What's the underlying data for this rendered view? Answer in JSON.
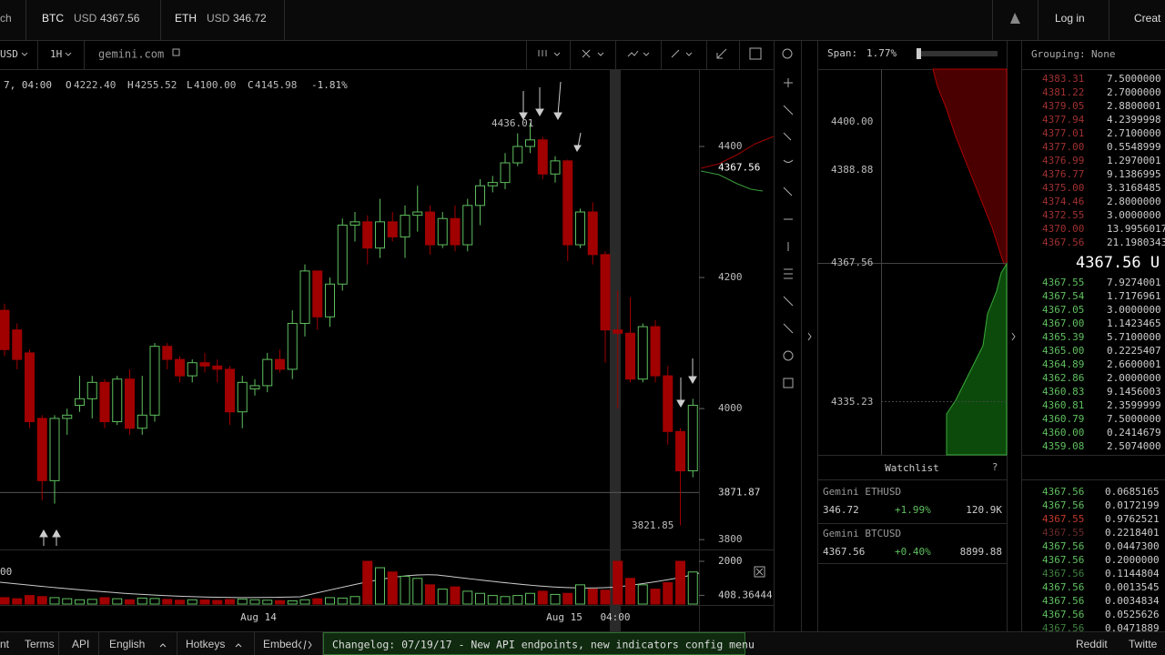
{
  "topbar": {
    "cut_left": "ch",
    "btc": {
      "symbol": "BTC",
      "currency": "USD",
      "price": "4367.56"
    },
    "eth": {
      "symbol": "ETH",
      "currency": "USD",
      "price": "346.72"
    },
    "login": "Log in",
    "create": "Creat"
  },
  "toolbar": {
    "pair": "USD",
    "interval": "1H",
    "source": "gemini.com"
  },
  "ohlc_line": {
    "time": "7, 04:00",
    "o_key": "O",
    "o": "4222.40",
    "h_key": "H",
    "h": "4255.52",
    "l_key": "L",
    "l": "4100.00",
    "c_key": "C",
    "c": "4145.98",
    "change": "-1.81%"
  },
  "chart": {
    "type": "candlestick",
    "ylim": [
      3785,
      4518
    ],
    "yticks": [
      4400,
      4200,
      4000,
      3800
    ],
    "last_price": 4367.56,
    "crosshair": 3871.87,
    "up_color": "#5fbf5f",
    "down_color": "#a00000",
    "candles": [
      [
        4150,
        4160,
        4080,
        4090
      ],
      [
        4120,
        4130,
        4060,
        4075
      ],
      [
        4085,
        4090,
        3970,
        3980
      ],
      [
        3985,
        3990,
        3860,
        3890
      ],
      [
        3890,
        3990,
        3855,
        3985
      ],
      [
        3985,
        4000,
        3960,
        3990
      ],
      [
        4005,
        4050,
        3995,
        4015
      ],
      [
        4015,
        4050,
        3985,
        4040
      ],
      [
        4040,
        4045,
        3970,
        3980
      ],
      [
        3980,
        4050,
        3975,
        4045
      ],
      [
        4045,
        4060,
        3960,
        3970
      ],
      [
        3970,
        4050,
        3960,
        3990
      ],
      [
        3990,
        4100,
        3980,
        4095
      ],
      [
        4095,
        4100,
        4060,
        4075
      ],
      [
        4075,
        4080,
        4040,
        4050
      ],
      [
        4050,
        4075,
        4040,
        4070
      ],
      [
        4070,
        4085,
        4055,
        4065
      ],
      [
        4065,
        4075,
        4040,
        4060
      ],
      [
        4060,
        4065,
        3975,
        3995
      ],
      [
        3995,
        4050,
        3970,
        4040
      ],
      [
        4030,
        4045,
        4020,
        4035
      ],
      [
        4035,
        4085,
        4025,
        4075
      ],
      [
        4075,
        4090,
        4055,
        4060
      ],
      [
        4060,
        4150,
        4045,
        4130
      ],
      [
        4130,
        4220,
        4110,
        4210
      ],
      [
        4210,
        4210,
        4120,
        4140
      ],
      [
        4140,
        4200,
        4125,
        4190
      ],
      [
        4190,
        4290,
        4180,
        4280
      ],
      [
        4280,
        4300,
        4255,
        4285
      ],
      [
        4285,
        4295,
        4220,
        4245
      ],
      [
        4245,
        4320,
        4230,
        4285
      ],
      [
        4285,
        4300,
        4255,
        4262
      ],
      [
        4262,
        4310,
        4230,
        4295
      ],
      [
        4295,
        4340,
        4270,
        4300
      ],
      [
        4300,
        4310,
        4235,
        4250
      ],
      [
        4250,
        4300,
        4245,
        4290
      ],
      [
        4290,
        4310,
        4240,
        4250
      ],
      [
        4250,
        4320,
        4240,
        4310
      ],
      [
        4310,
        4350,
        4280,
        4340
      ],
      [
        4340,
        4355,
        4330,
        4345
      ],
      [
        4345,
        4390,
        4335,
        4375
      ],
      [
        4375,
        4420,
        4370,
        4400
      ],
      [
        4400,
        4436.01,
        4390,
        4410
      ],
      [
        4410,
        4415,
        4350,
        4358
      ],
      [
        4358,
        4385,
        4345,
        4378
      ],
      [
        4378,
        4380,
        4225,
        4250
      ],
      [
        4250,
        4305,
        4245,
        4300
      ],
      [
        4300,
        4315,
        4220,
        4235
      ],
      [
        4235,
        4240,
        4070,
        4120
      ],
      [
        4120,
        4180,
        4000,
        4115
      ],
      [
        4115,
        4170,
        4040,
        4045
      ],
      [
        4045,
        4130,
        4040,
        4125
      ],
      [
        4125,
        4135,
        4040,
        4050
      ],
      [
        4050,
        4065,
        3945,
        3965
      ],
      [
        3965,
        3970,
        3821.85,
        3905
      ],
      [
        3905,
        4015,
        3895,
        4005
      ]
    ],
    "xlabels": [
      "Aug 14",
      "Aug 15",
      "04:00"
    ],
    "volume": {
      "ylim": [
        0,
        2170
      ],
      "yticks": [
        2000,
        408.36444
      ],
      "cut_label": "00",
      "values": [
        300,
        250,
        400,
        350,
        300,
        250,
        200,
        220,
        300,
        250,
        200,
        280,
        260,
        220,
        180,
        200,
        190,
        170,
        210,
        230,
        200,
        180,
        160,
        150,
        200,
        250,
        300,
        280,
        350,
        2000,
        1700,
        1500,
        1300,
        1200,
        900,
        700,
        800,
        600,
        500,
        400,
        350,
        400,
        500,
        600,
        450,
        500,
        900,
        700,
        650,
        2000,
        1200,
        900,
        700,
        1000,
        2000,
        1500
      ]
    }
  },
  "depth": {
    "span_label": "Span:",
    "span": "1.77%",
    "prices": [
      "4400.00",
      "4388.88",
      "4367.56",
      "4335.23"
    ]
  },
  "watchlist": {
    "title": "Watchlist",
    "help": "?",
    "rows": [
      [
        "Gemini ETHUSD",
        "346.72",
        "+1.99%",
        "120.9K"
      ],
      [
        "Gemini BTCUSD",
        "4367.56",
        "+0.40%",
        "8899.88"
      ]
    ]
  },
  "orderbook": {
    "grouping_label": "Grouping:",
    "grouping": "None",
    "asks": [
      [
        "4383.31",
        "7.5000000"
      ],
      [
        "4381.22",
        "2.7000000"
      ],
      [
        "4379.05",
        "2.8800001"
      ],
      [
        "4377.94",
        "4.2399998"
      ],
      [
        "4377.01",
        "2.7100000"
      ],
      [
        "4377.00",
        "0.5548999"
      ],
      [
        "4376.99",
        "1.2970001"
      ],
      [
        "4376.77",
        "9.1386995"
      ],
      [
        "4375.00",
        "3.3168485"
      ],
      [
        "4374.46",
        "2.8000000"
      ],
      [
        "4372.55",
        "3.0000000"
      ],
      [
        "4370.00",
        "13.9956017"
      ],
      [
        "4367.56",
        "21.1980343"
      ]
    ],
    "mid": "4367.56 U",
    "bids": [
      [
        "4367.55",
        "7.9274001"
      ],
      [
        "4367.54",
        "1.7176961"
      ],
      [
        "4367.05",
        "3.0000000"
      ],
      [
        "4367.00",
        "1.1423465"
      ],
      [
        "4365.39",
        "5.7100000"
      ],
      [
        "4365.00",
        "0.2225407"
      ],
      [
        "4364.89",
        "2.6600001"
      ],
      [
        "4362.86",
        "2.0000000"
      ],
      [
        "4360.83",
        "9.1456003"
      ],
      [
        "4360.81",
        "2.3599999"
      ],
      [
        "4360.79",
        "7.5000000"
      ],
      [
        "4360.00",
        "0.2414679"
      ],
      [
        "4359.08",
        "2.5074000"
      ]
    ],
    "trades": [
      [
        "4367.56",
        "0.0685165",
        "#5fbf5f"
      ],
      [
        "4367.56",
        "0.0172199",
        "#5fbf5f"
      ],
      [
        "4367.55",
        "0.9762521",
        "#c0392b"
      ],
      [
        "4367.55",
        "0.2218401",
        "#6a2a2a"
      ],
      [
        "4367.56",
        "0.0447300",
        "#5fbf5f"
      ],
      [
        "4367.56",
        "0.2000000",
        "#5fbf5f"
      ],
      [
        "4367.56",
        "0.1144804",
        "#3f7f3f"
      ],
      [
        "4367.56",
        "0.0013545",
        "#5fbf5f"
      ],
      [
        "4367.56",
        "0.0034834",
        "#5fbf5f"
      ],
      [
        "4367.56",
        "0.0525626",
        "#5fbf5f"
      ],
      [
        "4367.56",
        "0.0471889",
        "#3f7f3f"
      ]
    ]
  },
  "footer": {
    "cut_left": "nt",
    "links": [
      "Terms",
      "API",
      "English",
      "Hotkeys",
      "Embed"
    ],
    "changelog": "Changelog: 07/19/17 - New API endpoints, new indicators config menu",
    "reddit": "Reddit",
    "twitter": "Twitte"
  }
}
